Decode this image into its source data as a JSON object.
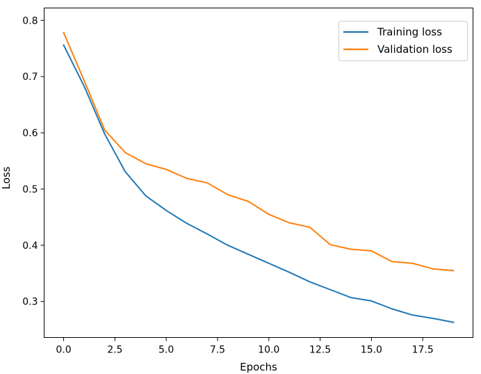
{
  "chart_data": {
    "type": "line",
    "title": "",
    "xlabel": "Epochs",
    "ylabel": "Loss",
    "xlim": [
      -0.95,
      19.95
    ],
    "ylim": [
      0.236,
      0.822
    ],
    "x_ticks": [
      0.0,
      2.5,
      5.0,
      7.5,
      10.0,
      12.5,
      15.0,
      17.5
    ],
    "x_tick_labels": [
      "0.0",
      "2.5",
      "5.0",
      "7.5",
      "10.0",
      "12.5",
      "15.0",
      "17.5"
    ],
    "y_ticks": [
      0.3,
      0.4,
      0.5,
      0.6,
      0.7,
      0.8
    ],
    "y_tick_labels": [
      "0.3",
      "0.4",
      "0.5",
      "0.6",
      "0.7",
      "0.8"
    ],
    "grid": false,
    "legend_position": "top-right",
    "x": [
      0,
      1,
      2,
      3,
      4,
      5,
      6,
      7,
      8,
      9,
      10,
      11,
      12,
      13,
      14,
      15,
      16,
      17,
      18,
      19
    ],
    "series": [
      {
        "name": "Training loss",
        "color": "#1f77b4",
        "values": [
          0.756,
          0.683,
          0.598,
          0.531,
          0.488,
          0.462,
          0.439,
          0.42,
          0.4,
          0.384,
          0.368,
          0.352,
          0.335,
          0.321,
          0.307,
          0.301,
          0.287,
          0.276,
          0.27,
          0.263
        ]
      },
      {
        "name": "Validation loss",
        "color": "#ff7f0e",
        "values": [
          0.778,
          0.693,
          0.605,
          0.565,
          0.545,
          0.535,
          0.519,
          0.511,
          0.49,
          0.478,
          0.455,
          0.44,
          0.432,
          0.401,
          0.393,
          0.39,
          0.371,
          0.368,
          0.358,
          0.355
        ]
      }
    ]
  }
}
